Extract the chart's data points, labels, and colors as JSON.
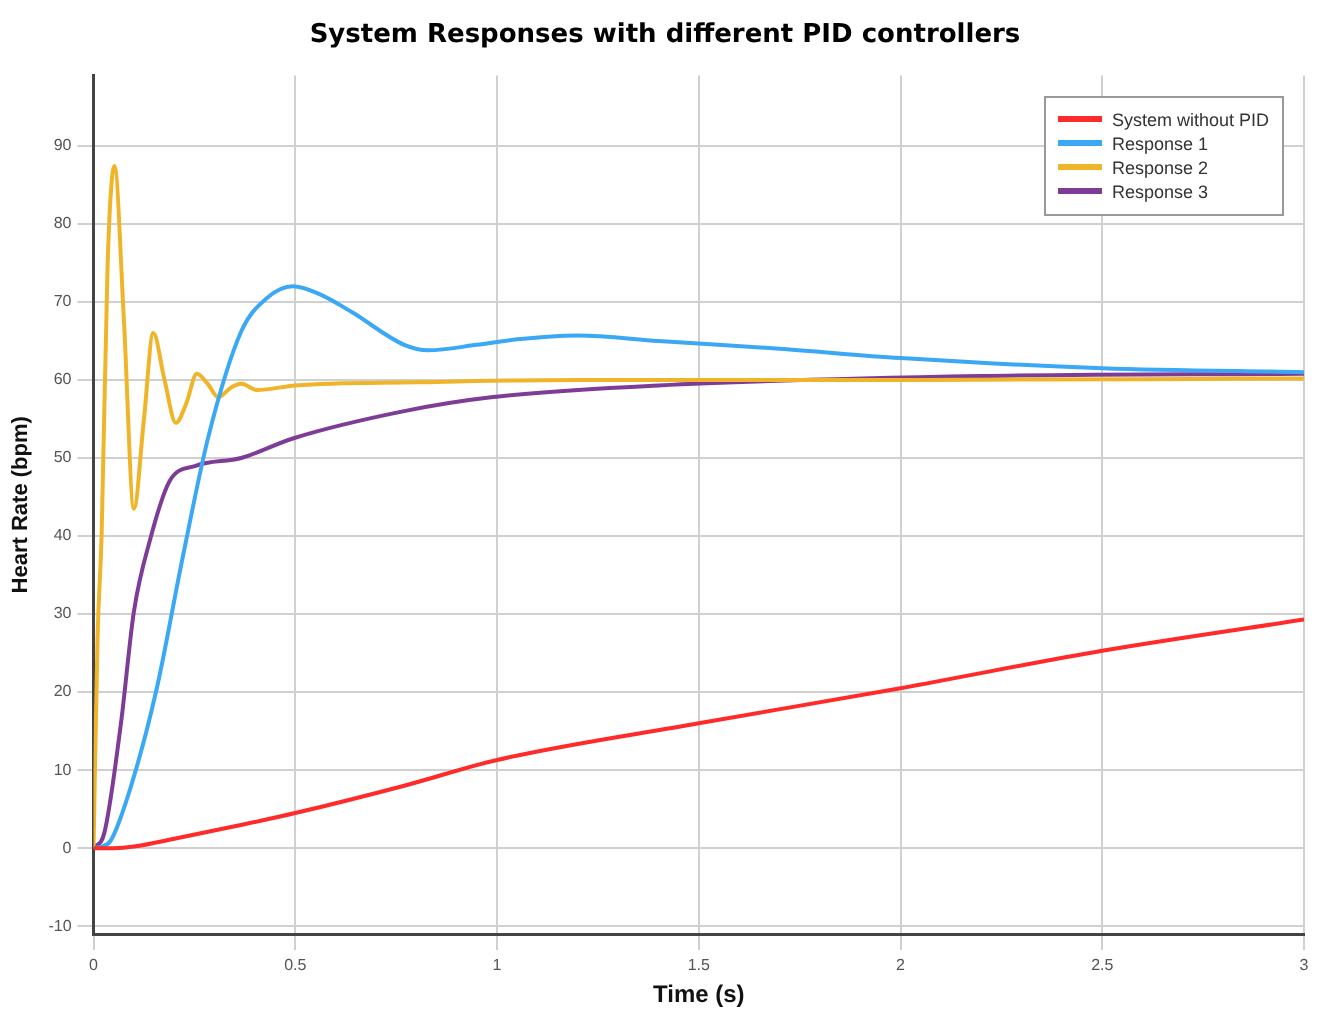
{
  "chart_data": {
    "type": "line",
    "title": "System Responses with different  PID controllers",
    "xlabel": "Time (s)",
    "ylabel": "Heart Rate (bpm)",
    "xlim": [
      0,
      3
    ],
    "xticks": [
      0,
      0.5,
      1,
      1.5,
      2,
      2.5,
      3
    ],
    "ylim": [
      -11,
      99
    ],
    "yticks": [
      -10,
      0,
      10,
      20,
      30,
      40,
      50,
      60,
      70,
      80,
      90
    ],
    "grid": true,
    "legend": "top right",
    "marker": "none",
    "line_style": "solid",
    "series": [
      {
        "name": "System without PID",
        "color": "#ff2a2a",
        "x": [
          0,
          0.05,
          0.1,
          0.2,
          0.35,
          0.5,
          0.77,
          1,
          1.5,
          2,
          2.5,
          3
        ],
        "values": [
          0,
          0,
          0.2,
          1.2,
          2.8,
          4.5,
          8,
          11.3,
          16,
          20.5,
          25.3,
          29.3
        ]
      },
      {
        "name": "Response 1",
        "color": "#3aa8f5",
        "x": [
          0,
          0.02,
          0.043,
          0.092,
          0.156,
          0.22,
          0.285,
          0.366,
          0.43,
          0.494,
          0.56,
          0.64,
          0.77,
          0.83,
          0.95,
          1.05,
          1.2,
          1.4,
          1.7,
          2,
          2.5,
          3
        ],
        "values": [
          0,
          0.2,
          1,
          7.8,
          20.3,
          37,
          52.8,
          66.2,
          70.5,
          72,
          71,
          68.7,
          64.5,
          63.8,
          64.5,
          65.2,
          65.7,
          65,
          64,
          62.8,
          61.5,
          61
        ]
      },
      {
        "name": "Response 2",
        "color": "#f0b429",
        "x": [
          0,
          0.01,
          0.02,
          0.035,
          0.052,
          0.075,
          0.1,
          0.125,
          0.148,
          0.176,
          0.204,
          0.23,
          0.256,
          0.283,
          0.309,
          0.34,
          0.366,
          0.406,
          0.5,
          0.8,
          1.2,
          2,
          3
        ],
        "values": [
          0,
          27,
          40,
          75,
          87.4,
          68,
          43.5,
          55,
          66,
          60,
          54.5,
          57,
          60.8,
          59.5,
          57.8,
          59,
          59.5,
          58.7,
          59.3,
          59.7,
          60,
          60,
          60.2
        ]
      },
      {
        "name": "Response 3",
        "color": "#7e3c96",
        "x": [
          0,
          0.027,
          0.068,
          0.1,
          0.14,
          0.188,
          0.253,
          0.366,
          0.494,
          0.77,
          0.99,
          1.4,
          2.2,
          3
        ],
        "values": [
          0,
          2,
          16,
          30.3,
          39.5,
          47,
          49,
          50,
          52.5,
          56,
          57.8,
          59.3,
          60.5,
          60.8
        ]
      }
    ]
  }
}
